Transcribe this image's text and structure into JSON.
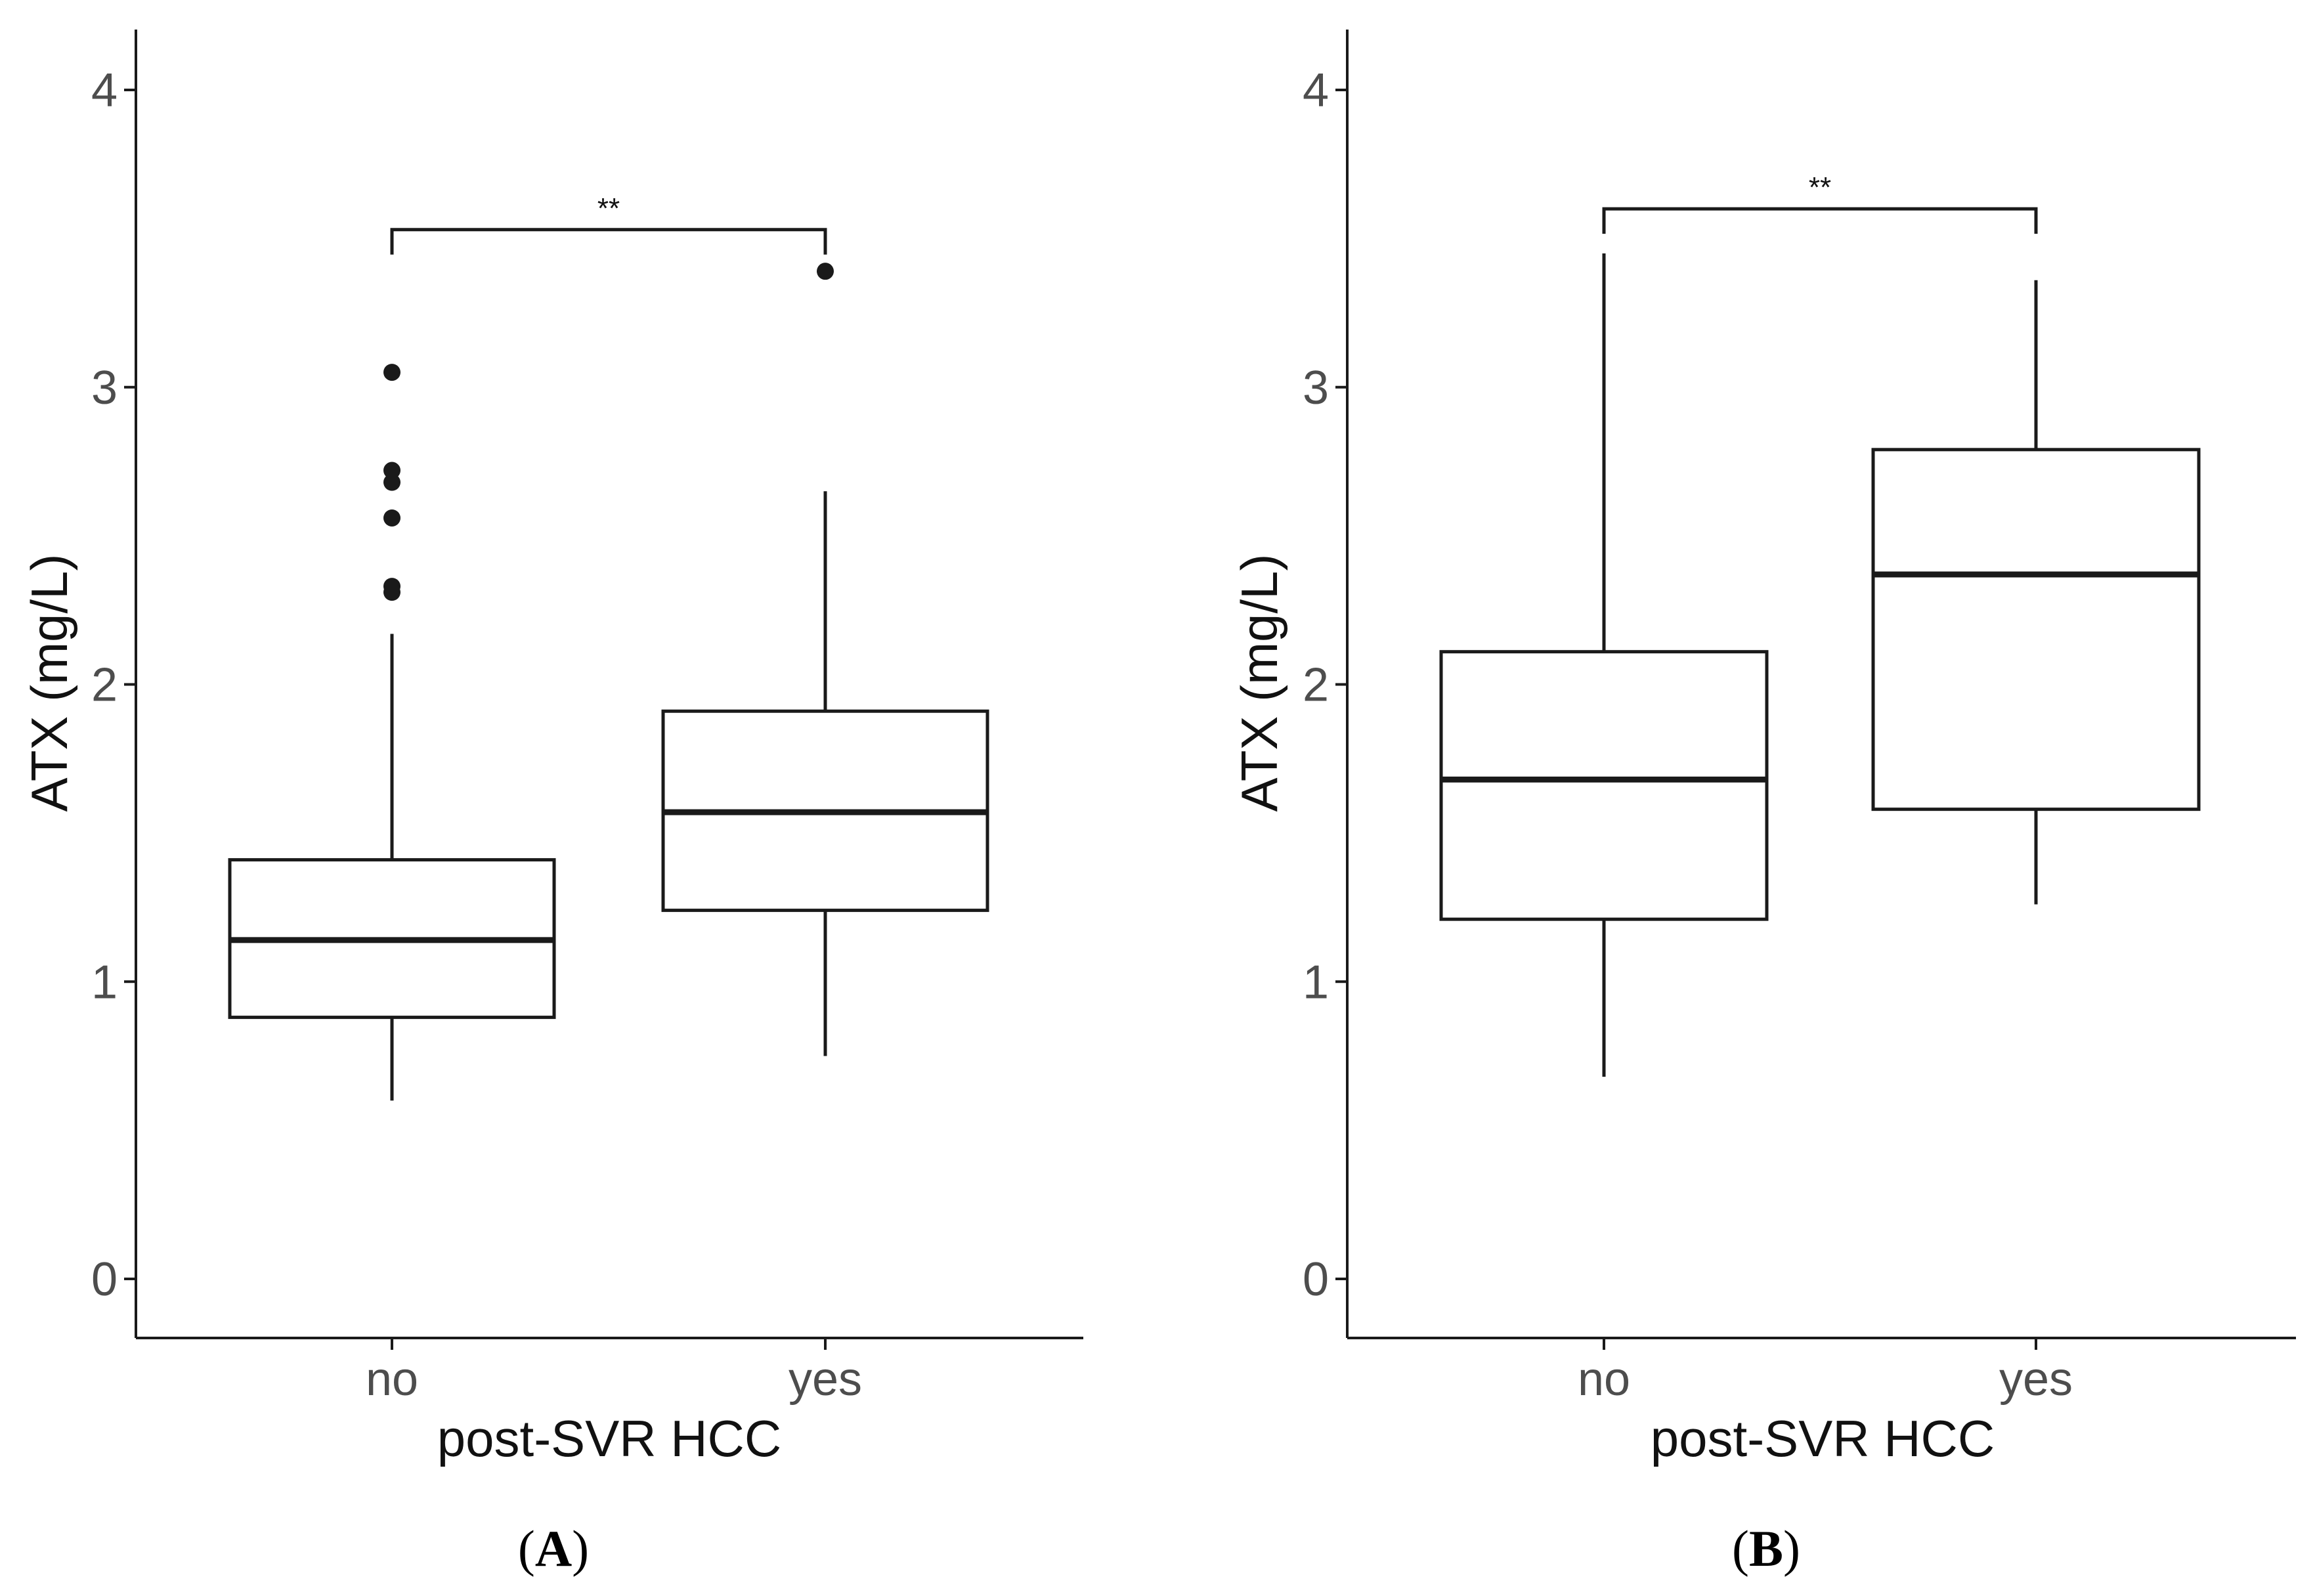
{
  "chart_data": [
    {
      "type": "box",
      "panel_label": "A",
      "xlabel": "post-SVR HCC",
      "ylabel": "ATX (mg/L)",
      "ylim": [
        -0.2,
        4.2
      ],
      "yticks": [
        "0",
        "1",
        "2",
        "3",
        "4"
      ],
      "ytick_values": [
        0,
        1,
        2,
        3,
        4
      ],
      "categories": [
        "no",
        "yes"
      ],
      "boxes": [
        {
          "category": "no",
          "whisker_low": 0.6,
          "q1": 0.88,
          "median": 1.14,
          "q3": 1.41,
          "whisker_high": 2.17,
          "outliers": [
            2.31,
            2.33,
            2.56,
            2.68,
            2.72,
            3.05
          ]
        },
        {
          "category": "yes",
          "whisker_low": 0.75,
          "q1": 1.24,
          "median": 1.57,
          "q3": 1.91,
          "whisker_high": 2.65,
          "outliers": [
            3.39
          ]
        }
      ],
      "significance": {
        "label": "**",
        "between": [
          "no",
          "yes"
        ],
        "y": 3.53
      }
    },
    {
      "type": "box",
      "panel_label": "B",
      "xlabel": "post-SVR HCC",
      "ylabel": "ATX (mg/L)",
      "ylim": [
        -0.2,
        4.2
      ],
      "yticks": [
        "0",
        "1",
        "2",
        "3",
        "4"
      ],
      "ytick_values": [
        0,
        1,
        2,
        3,
        4
      ],
      "categories": [
        "no",
        "yes"
      ],
      "boxes": [
        {
          "category": "no",
          "whisker_low": 0.68,
          "q1": 1.21,
          "median": 1.68,
          "q3": 2.11,
          "whisker_high": 3.45,
          "outliers": []
        },
        {
          "category": "yes",
          "whisker_low": 1.26,
          "q1": 1.58,
          "median": 2.37,
          "q3": 2.79,
          "whisker_high": 3.36,
          "outliers": []
        }
      ],
      "significance": {
        "label": "**",
        "between": [
          "no",
          "yes"
        ],
        "y": 3.6
      }
    }
  ]
}
